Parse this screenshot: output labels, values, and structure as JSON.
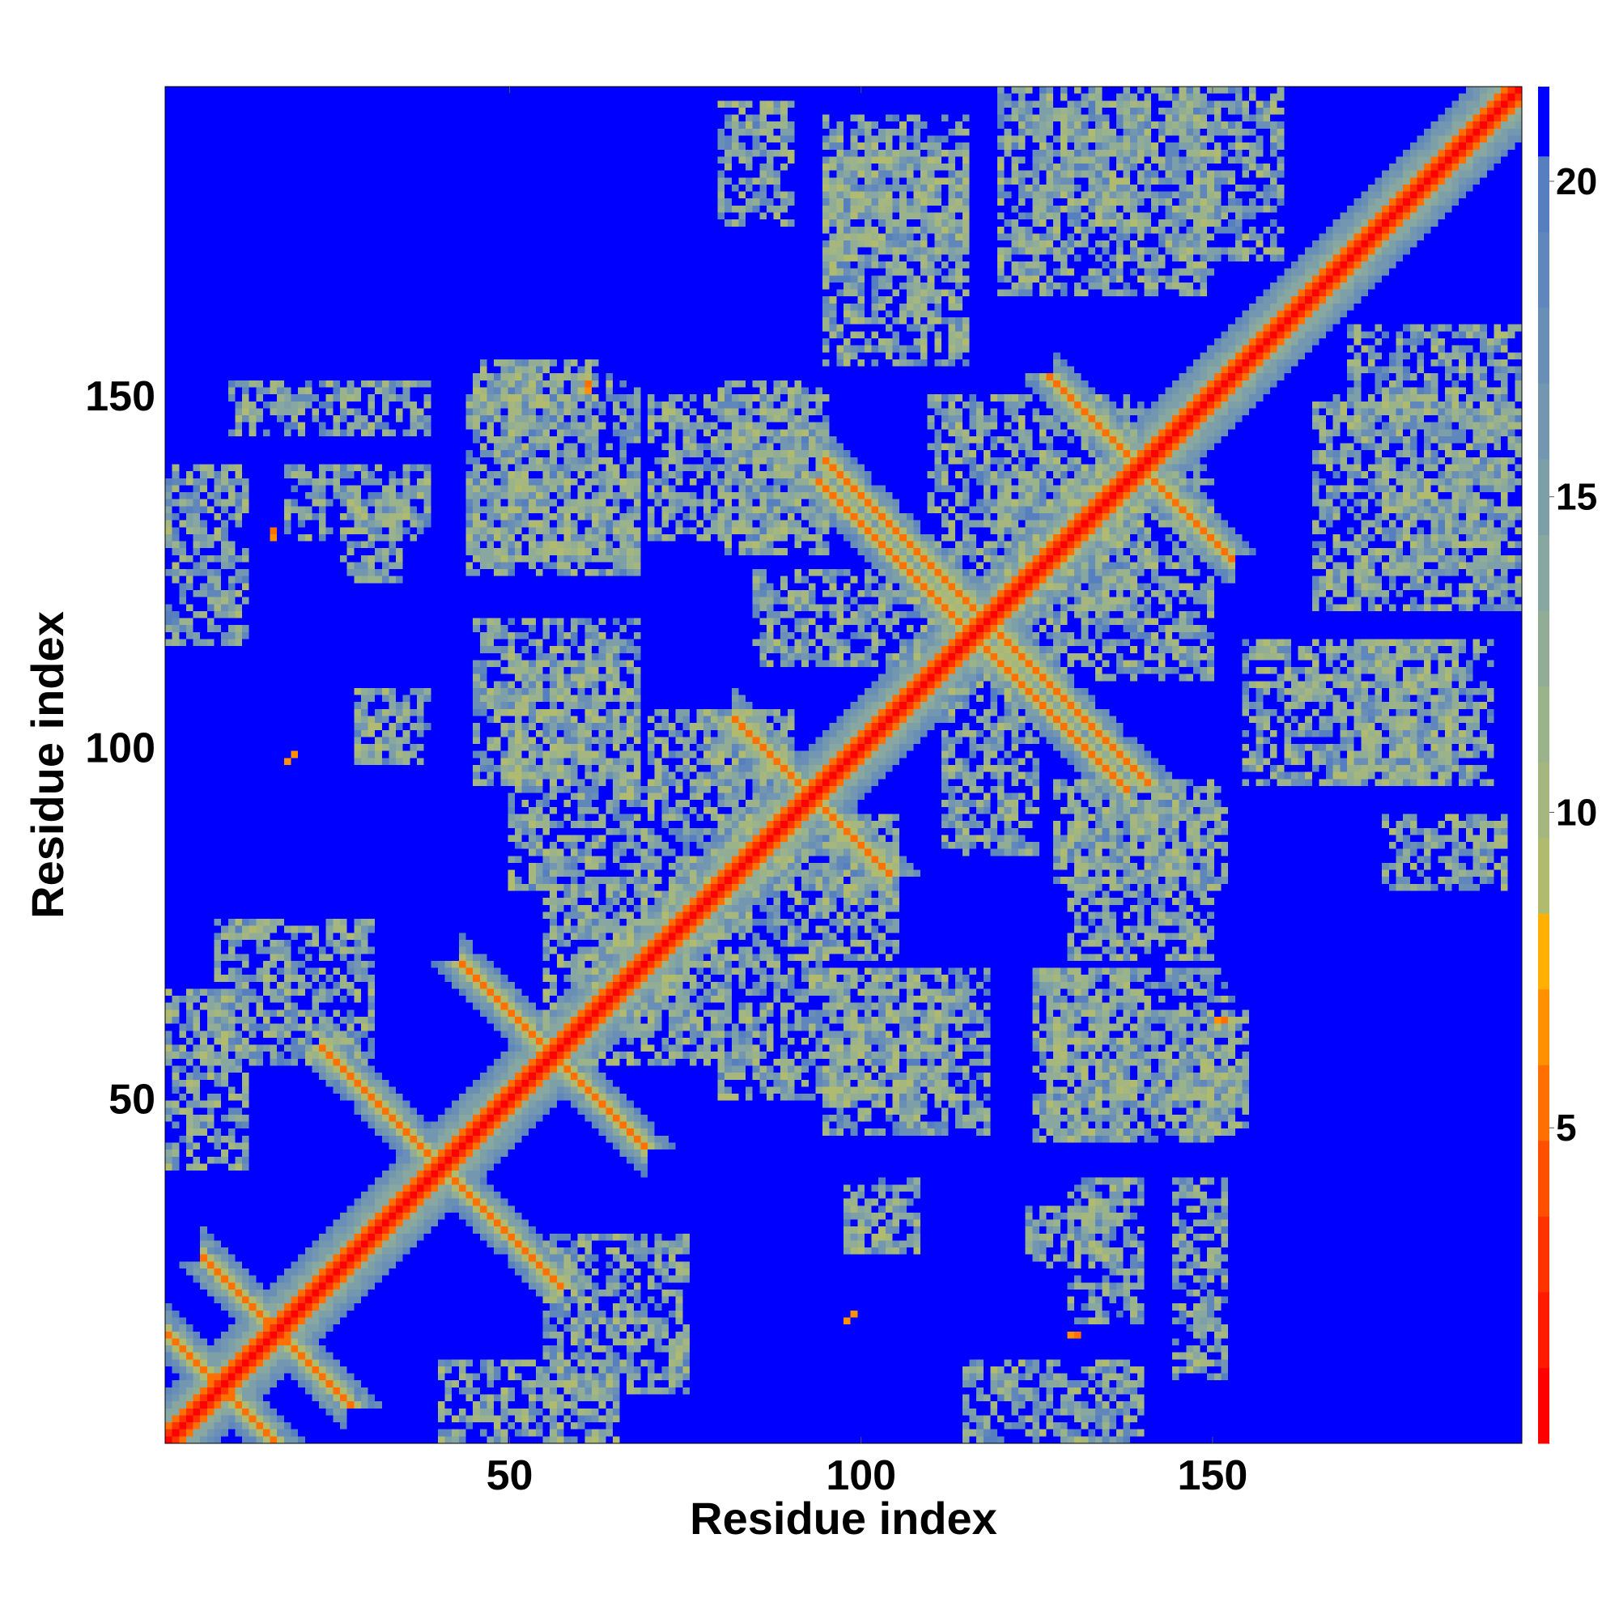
{
  "chart_data": {
    "type": "heatmap",
    "title": "",
    "xlabel": "Residue index",
    "ylabel": "Residue index",
    "n_residues": 194,
    "xlim": [
      1,
      194
    ],
    "ylim": [
      1,
      194
    ],
    "x_ticks": [
      50,
      100,
      150
    ],
    "x_tick_labels": [
      "50",
      "100",
      "150"
    ],
    "y_ticks": [
      50,
      100,
      150
    ],
    "y_tick_labels": [
      "50",
      "100",
      "150"
    ],
    "colorbar": {
      "range": [
        0,
        21.5
      ],
      "ticks": [
        5,
        10,
        15,
        20
      ],
      "tick_labels": [
        "5",
        "10",
        "15",
        "20"
      ],
      "levels": [
        {
          "max": 1.2,
          "color": "#ff0000"
        },
        {
          "max": 2.4,
          "color": "#ff1a00"
        },
        {
          "max": 3.6,
          "color": "#ff3300"
        },
        {
          "max": 4.8,
          "color": "#ff5000"
        },
        {
          "max": 6.0,
          "color": "#ff7000"
        },
        {
          "max": 7.2,
          "color": "#ff9000"
        },
        {
          "max": 8.4,
          "color": "#ffb000"
        },
        {
          "max": 9.6,
          "color": "#b0bb70"
        },
        {
          "max": 10.8,
          "color": "#a5b77e"
        },
        {
          "max": 12.0,
          "color": "#9bb38a"
        },
        {
          "max": 13.2,
          "color": "#91ad96"
        },
        {
          "max": 14.4,
          "color": "#87a7a0"
        },
        {
          "max": 15.6,
          "color": "#7d9fa8"
        },
        {
          "max": 16.8,
          "color": "#7397b0"
        },
        {
          "max": 18.0,
          "color": "#6a8fb6"
        },
        {
          "max": 19.2,
          "color": "#6087bc"
        },
        {
          "max": 20.4,
          "color": "#567fc0"
        },
        {
          "max": 21.5,
          "color": "#0000ff"
        }
      ]
    },
    "background_color": "#0000ff",
    "contact_bands": [
      {
        "type": "diagonal",
        "residue_range": [
          1,
          194
        ],
        "distance": 3.5
      },
      {
        "type": "antiparallel",
        "sum": 80,
        "residue_range": [
          23,
          57
        ],
        "distance": 5.5
      },
      {
        "type": "antiparallel",
        "sum": 112,
        "residue_range": [
          43,
          69
        ],
        "distance": 5.5
      },
      {
        "type": "antiparallel",
        "sum": 186,
        "residue_range": [
          82,
          104
        ],
        "distance": 5.5
      },
      {
        "type": "antiparallel",
        "sum": 236,
        "residue_range": [
          95,
          128
        ],
        "distance": 5.8
      },
      {
        "type": "antiparallel",
        "sum": 232,
        "residue_range": [
          104,
          138
        ],
        "distance": 5.5
      },
      {
        "type": "antiparallel",
        "sum": 280,
        "residue_range": [
          128,
          153
        ],
        "distance": 5.5
      },
      {
        "type": "antiparallel",
        "sum": 17,
        "residue_range": [
          1,
          16
        ],
        "distance": 6.0
      },
      {
        "type": "antiparallel",
        "sum": 33,
        "residue_range": [
          6,
          26
        ],
        "distance": 6.0
      }
    ],
    "contact_patches": [
      {
        "x": [
          44,
          56
        ],
        "y": [
          140,
          153
        ]
      },
      {
        "x": [
          57,
          68
        ],
        "y": [
          140,
          153
        ]
      },
      {
        "x": [
          44,
          56
        ],
        "y": [
          125,
          139
        ]
      },
      {
        "x": [
          57,
          68
        ],
        "y": [
          125,
          139
        ]
      },
      {
        "x": [
          1,
          12
        ],
        "y": [
          115,
          140
        ]
      },
      {
        "x": [
          26,
          34
        ],
        "y": [
          124,
          136
        ]
      },
      {
        "x": [
          45,
          68
        ],
        "y": [
          95,
          118
        ]
      },
      {
        "x": [
          28,
          35
        ],
        "y": [
          98,
          105
        ]
      },
      {
        "x": [
          80,
          95
        ],
        "y": [
          128,
          152
        ]
      },
      {
        "x": [
          95,
          115
        ],
        "y": [
          155,
          185
        ]
      },
      {
        "x": [
          80,
          90
        ],
        "y": [
          175,
          192
        ]
      },
      {
        "x": [
          125,
          140
        ],
        "y": [
          175,
          192
        ]
      },
      {
        "x": [
          145,
          160
        ],
        "y": [
          170,
          194
        ]
      },
      {
        "x": [
          165,
          194
        ],
        "y": [
          120,
          150
        ]
      },
      {
        "x": [
          170,
          190
        ],
        "y": [
          95,
          115
        ]
      },
      {
        "x": [
          120,
          150
        ],
        "y": [
          110,
          140
        ]
      },
      {
        "x": [
          80,
          95
        ],
        "y": [
          50,
          70
        ]
      },
      {
        "x": [
          96,
          112
        ],
        "y": [
          50,
          68
        ]
      },
      {
        "x": [
          127,
          140
        ],
        "y": [
          55,
          68
        ]
      },
      {
        "x": [
          143,
          155
        ],
        "y": [
          50,
          62
        ]
      },
      {
        "x": [
          127,
          140
        ],
        "y": [
          45,
          55
        ]
      },
      {
        "x": [
          145,
          155
        ],
        "y": [
          45,
          55
        ]
      },
      {
        "x": [
          95,
          105
        ],
        "y": [
          78,
          90
        ]
      },
      {
        "x": [
          130,
          150
        ],
        "y": [
          70,
          95
        ]
      },
      {
        "x": [
          98,
          108
        ],
        "y": [
          28,
          38
        ]
      },
      {
        "x": [
          130,
          140
        ],
        "y": [
          18,
          38
        ]
      },
      {
        "x": [
          145,
          152
        ],
        "y": [
          10,
          38
        ]
      },
      {
        "x": [
          55,
          75
        ],
        "y": [
          8,
          30
        ]
      },
      {
        "x": [
          1,
          12
        ],
        "y": [
          40,
          65
        ]
      },
      {
        "x": [
          55,
          75
        ],
        "y": [
          60,
          80
        ]
      },
      {
        "x": [
          70,
          90
        ],
        "y": [
          80,
          105
        ]
      },
      {
        "x": [
          112,
          125
        ],
        "y": [
          85,
          112
        ]
      }
    ],
    "isolated_points": [
      {
        "x": 19,
        "y": 99,
        "d": 6.5
      },
      {
        "x": 16,
        "y": 130,
        "d": 6.5
      },
      {
        "x": 98,
        "y": 18,
        "d": 6.5
      },
      {
        "x": 131,
        "y": 16,
        "d": 6.0
      },
      {
        "x": 151,
        "y": 61,
        "d": 6.5
      },
      {
        "x": 61,
        "y": 152,
        "d": 6.0
      }
    ]
  }
}
